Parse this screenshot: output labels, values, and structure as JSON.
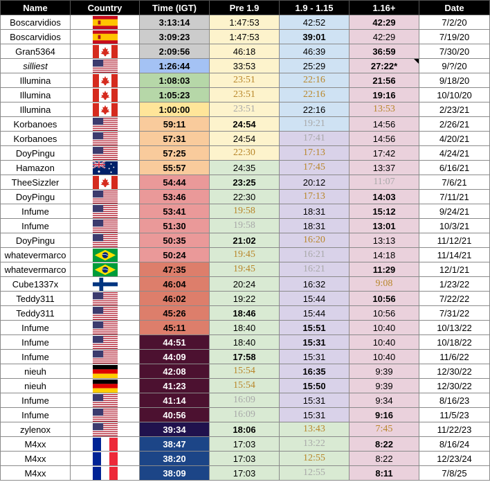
{
  "columns": [
    "Name",
    "Country",
    "Time (IGT)",
    "Pre 1.9",
    "1.9 - 1.15",
    "1.16+",
    "Date"
  ],
  "colors": {
    "header_bg": "#000000",
    "pre_bg": "#fdf3cc",
    "pre_green_bg": "#d9ead3",
    "mid_blue_bg": "#cfe2f3",
    "mid_purple_bg": "#d9d2e9",
    "post_pink_bg": "#ead1dc",
    "gold_text": "#b8862a",
    "gray_text": "#a8a8a8"
  },
  "rows": [
    {
      "name": "Boscarvidios",
      "country": "spain-flag",
      "time": "3:13:14",
      "time_bg": "#cccccc",
      "pre": "1:47:53",
      "mid": "42:52",
      "post": "42:29",
      "date": "7/2/20",
      "pre_bg": "#fdf3cc",
      "mid_bg": "#cfe2f3",
      "post_bold": true
    },
    {
      "name": "Boscarvidios",
      "country": "spain-flag",
      "time": "3:09:23",
      "time_bg": "#cccccc",
      "pre": "1:47:53",
      "mid": "39:01",
      "post": "42:29",
      "date": "7/19/20",
      "pre_bg": "#fdf3cc",
      "mid_bg": "#cfe2f3",
      "mid_bold": true
    },
    {
      "name": "Gran5364",
      "country": "canada-flag",
      "time": "2:09:56",
      "time_bg": "#cccccc",
      "pre": "46:18",
      "mid": "46:39",
      "post": "36:59",
      "date": "7/30/20",
      "pre_bg": "#fdf3cc",
      "mid_bg": "#cfe2f3",
      "post_bold": true
    },
    {
      "name": "silliest",
      "country": "usa-flag",
      "time": "1:26:44",
      "time_bg": "#a4c2f4",
      "pre": "33:53",
      "mid": "25:29",
      "post": "27:22*",
      "date": "9/?/20",
      "pre_bg": "#fdf3cc",
      "mid_bg": "#cfe2f3",
      "post_bold": true,
      "name_italic": true,
      "post_note": true
    },
    {
      "name": "Illumina",
      "country": "canada-flag",
      "time": "1:08:03",
      "time_bg": "#b6d7a8",
      "pre": "23:51",
      "mid": "22:16",
      "post": "21:56",
      "date": "9/18/20",
      "pre_bg": "#fdf3cc",
      "mid_bg": "#cfe2f3",
      "pre_style": "gold",
      "mid_style": "gold",
      "post_bold": true
    },
    {
      "name": "Illumina",
      "country": "canada-flag",
      "time": "1:05:23",
      "time_bg": "#b6d7a8",
      "pre": "23:51",
      "mid": "22:16",
      "post": "19:16",
      "date": "10/10/20",
      "pre_bg": "#fdf3cc",
      "mid_bg": "#cfe2f3",
      "pre_style": "gold",
      "mid_style": "gold",
      "post_bold": true
    },
    {
      "name": "Illumina",
      "country": "canada-flag",
      "time": "1:00:00",
      "time_bg": "#ffe599",
      "pre": "23:51",
      "mid": "22:16",
      "post": "13:53",
      "date": "2/23/21",
      "pre_bg": "#fdf3cc",
      "mid_bg": "#cfe2f3",
      "pre_style": "gray",
      "post_style": "gold"
    },
    {
      "name": "Korbanoes",
      "country": "usa-flag",
      "time": "59:11",
      "time_bg": "#f9cb9c",
      "pre": "24:54",
      "mid": "19:21",
      "post": "14:56",
      "date": "2/26/21",
      "pre_bg": "#fdf3cc",
      "mid_bg": "#cfe2f3",
      "pre_bold": true,
      "mid_style": "gray"
    },
    {
      "name": "Korbanoes",
      "country": "usa-flag",
      "time": "57:31",
      "time_bg": "#f9cb9c",
      "pre": "24:54",
      "mid": "17:41",
      "post": "14:56",
      "date": "4/20/21",
      "pre_bg": "#fdf3cc",
      "mid_bg": "#d9d2e9",
      "mid_style": "gray"
    },
    {
      "name": "DoyPingu",
      "country": "usa-flag",
      "time": "57:25",
      "time_bg": "#f9cb9c",
      "pre": "22:30",
      "mid": "17:13",
      "post": "17:42",
      "date": "4/24/21",
      "pre_bg": "#fdf3cc",
      "mid_bg": "#d9d2e9",
      "pre_style": "gold",
      "mid_style": "gold"
    },
    {
      "name": "Hamazon",
      "country": "australia-flag",
      "time": "55:57",
      "time_bg": "#f9cb9c",
      "pre": "24:35",
      "mid": "17:45",
      "post": "13:37",
      "date": "6/16/21",
      "pre_bg": "#d9ead3",
      "mid_bg": "#d9d2e9",
      "mid_style": "gold"
    },
    {
      "name": "TheeSizzler",
      "country": "canada-flag",
      "time": "54:44",
      "time_bg": "#ea9999",
      "pre": "23:25",
      "mid": "20:12",
      "post": "11:07",
      "date": "7/6/21",
      "pre_bg": "#d9ead3",
      "mid_bg": "#d9d2e9",
      "pre_bold": true,
      "post_style": "gray"
    },
    {
      "name": "DoyPingu",
      "country": "usa-flag",
      "time": "53:46",
      "time_bg": "#ea9999",
      "pre": "22:30",
      "mid": "17:13",
      "post": "14:03",
      "date": "7/11/21",
      "pre_bg": "#d9ead3",
      "mid_bg": "#d9d2e9",
      "mid_style": "gold",
      "post_bold": true
    },
    {
      "name": "Infume",
      "country": "usa-flag",
      "time": "53:41",
      "time_bg": "#ea9999",
      "pre": "19:58",
      "mid": "18:31",
      "post": "15:12",
      "date": "9/24/21",
      "pre_bg": "#d9ead3",
      "mid_bg": "#d9d2e9",
      "pre_style": "gold",
      "post_bold": true
    },
    {
      "name": "Infume",
      "country": "usa-flag",
      "time": "51:30",
      "time_bg": "#ea9999",
      "pre": "19:58",
      "mid": "18:31",
      "post": "13:01",
      "date": "10/3/21",
      "pre_bg": "#d9ead3",
      "mid_bg": "#d9d2e9",
      "pre_style": "gray",
      "post_bold": true
    },
    {
      "name": "DoyPingu",
      "country": "usa-flag",
      "time": "50:35",
      "time_bg": "#ea9999",
      "pre": "21:02",
      "mid": "16:20",
      "post": "13:13",
      "date": "11/12/21",
      "pre_bg": "#d9ead3",
      "mid_bg": "#d9d2e9",
      "pre_bold": true,
      "mid_style": "gold"
    },
    {
      "name": "whatevermarco",
      "country": "brazil-flag",
      "time": "50:24",
      "time_bg": "#ea9999",
      "pre": "19:45",
      "mid": "16:21",
      "post": "14:18",
      "date": "11/14/21",
      "pre_bg": "#d9ead3",
      "mid_bg": "#d9d2e9",
      "pre_style": "gold",
      "mid_style": "gray"
    },
    {
      "name": "whatevermarco",
      "country": "brazil-flag",
      "time": "47:35",
      "time_bg": "#dd7e6b",
      "pre": "19:45",
      "mid": "16:21",
      "post": "11:29",
      "date": "12/1/21",
      "pre_bg": "#d9ead3",
      "mid_bg": "#d9d2e9",
      "pre_style": "gold",
      "mid_style": "gray",
      "post_bold": true
    },
    {
      "name": "Cube1337x",
      "country": "finland-flag",
      "time": "46:04",
      "time_bg": "#dd7e6b",
      "pre": "20:24",
      "mid": "16:32",
      "post": "9:08",
      "date": "1/23/22",
      "pre_bg": "#d9ead3",
      "mid_bg": "#d9d2e9",
      "post_style": "gold"
    },
    {
      "name": "Teddy311",
      "country": "usa-flag",
      "time": "46:02",
      "time_bg": "#dd7e6b",
      "pre": "19:22",
      "mid": "15:44",
      "post": "10:56",
      "date": "7/22/22",
      "pre_bg": "#d9ead3",
      "mid_bg": "#d9d2e9",
      "post_bold": true
    },
    {
      "name": "Teddy311",
      "country": "usa-flag",
      "time": "45:26",
      "time_bg": "#dd7e6b",
      "pre": "18:46",
      "mid": "15:44",
      "post": "10:56",
      "date": "7/31/22",
      "pre_bg": "#d9ead3",
      "mid_bg": "#d9d2e9",
      "pre_bold": true
    },
    {
      "name": "Infume",
      "country": "usa-flag",
      "time": "45:11",
      "time_bg": "#dd7e6b",
      "pre": "18:40",
      "mid": "15:51",
      "post": "10:40",
      "date": "10/13/22",
      "pre_bg": "#d9ead3",
      "mid_bg": "#d9d2e9",
      "mid_bold": true
    },
    {
      "name": "Infume",
      "country": "usa-flag",
      "time": "44:51",
      "time_bg": "#4c1130",
      "time_light": true,
      "pre": "18:40",
      "mid": "15:31",
      "post": "10:40",
      "date": "10/18/22",
      "pre_bg": "#d9ead3",
      "mid_bg": "#d9d2e9",
      "mid_bold": true
    },
    {
      "name": "Infume",
      "country": "usa-flag",
      "time": "44:09",
      "time_bg": "#4c1130",
      "time_light": true,
      "pre": "17:58",
      "mid": "15:31",
      "post": "10:40",
      "date": "11/6/22",
      "pre_bg": "#d9ead3",
      "mid_bg": "#d9d2e9",
      "pre_bold": true
    },
    {
      "name": "nieuh",
      "country": "germany-flag",
      "time": "42:08",
      "time_bg": "#4c1130",
      "time_light": true,
      "pre": "15:54",
      "mid": "16:35",
      "post": "9:39",
      "date": "12/30/22",
      "pre_bg": "#d9ead3",
      "mid_bg": "#d9d2e9",
      "pre_style": "gold",
      "mid_bold": true
    },
    {
      "name": "nieuh",
      "country": "germany-flag",
      "time": "41:23",
      "time_bg": "#4c1130",
      "time_light": true,
      "pre": "15:54",
      "mid": "15:50",
      "post": "9:39",
      "date": "12/30/22",
      "pre_bg": "#d9ead3",
      "mid_bg": "#d9d2e9",
      "pre_style": "gold",
      "mid_bold": true
    },
    {
      "name": "Infume",
      "country": "usa-flag",
      "time": "41:14",
      "time_bg": "#4c1130",
      "time_light": true,
      "pre": "16:09",
      "mid": "15:31",
      "post": "9:34",
      "date": "8/16/23",
      "pre_bg": "#d9ead3",
      "mid_bg": "#d9d2e9",
      "pre_style": "gray"
    },
    {
      "name": "Infume",
      "country": "usa-flag",
      "time": "40:56",
      "time_bg": "#4c1130",
      "time_light": true,
      "pre": "16:09",
      "mid": "15:31",
      "post": "9:16",
      "date": "11/5/23",
      "pre_bg": "#d9ead3",
      "mid_bg": "#d9d2e9",
      "pre_style": "gray",
      "post_bold": true
    },
    {
      "name": "zylenox",
      "country": "usa-flag",
      "time": "39:34",
      "time_bg": "#20124d",
      "time_light": true,
      "pre": "18:06",
      "mid": "13:43",
      "post": "7:45",
      "date": "11/22/23",
      "pre_bg": "#d9ead3",
      "mid_bg": "#d9ead3",
      "pre_bold": true,
      "mid_style": "gold",
      "post_style": "gold"
    },
    {
      "name": "M4xx",
      "country": "france-flag",
      "time": "38:47",
      "time_bg": "#1c4587",
      "time_light": true,
      "pre": "17:03",
      "mid": "13:22",
      "post": "8:22",
      "date": "8/16/24",
      "pre_bg": "#d9ead3",
      "mid_bg": "#d9ead3",
      "mid_style": "gray",
      "post_bold": true
    },
    {
      "name": "M4xx",
      "country": "france-flag",
      "time": "38:20",
      "time_bg": "#1c4587",
      "time_light": true,
      "pre": "17:03",
      "mid": "12:55",
      "post": "8:22",
      "date": "12/23/24",
      "pre_bg": "#d9ead3",
      "mid_bg": "#d9ead3",
      "mid_style": "gold"
    },
    {
      "name": "M4xx",
      "country": "france-flag",
      "time": "38:09",
      "time_bg": "#1c4587",
      "time_light": true,
      "pre": "17:03",
      "mid": "12:55",
      "post": "8:11",
      "date": "7/8/25",
      "pre_bg": "#d9ead3",
      "mid_bg": "#d9ead3",
      "mid_style": "gray",
      "post_bold": true
    }
  ]
}
